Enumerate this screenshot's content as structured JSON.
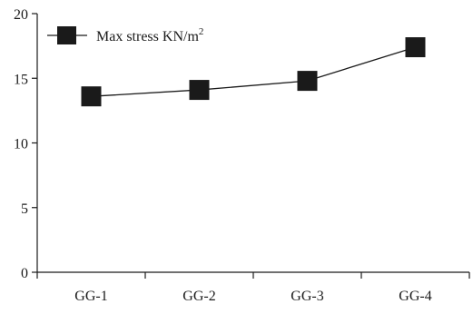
{
  "chart_data": {
    "type": "line",
    "categories": [
      "GG-1",
      "GG-2",
      "GG-3",
      "GG-4"
    ],
    "series": [
      {
        "name": "Max stress KN/m",
        "superscript": "2",
        "values": [
          13.6,
          14.1,
          14.8,
          17.4
        ]
      }
    ],
    "ylim": [
      0,
      20
    ],
    "yticks": [
      0,
      5,
      10,
      15,
      20
    ],
    "grid": false,
    "legend_position": "top-left",
    "colors": {
      "line": "#1a1a1a",
      "marker": "#1a1a1a",
      "axis": "#1a1a1a"
    }
  }
}
